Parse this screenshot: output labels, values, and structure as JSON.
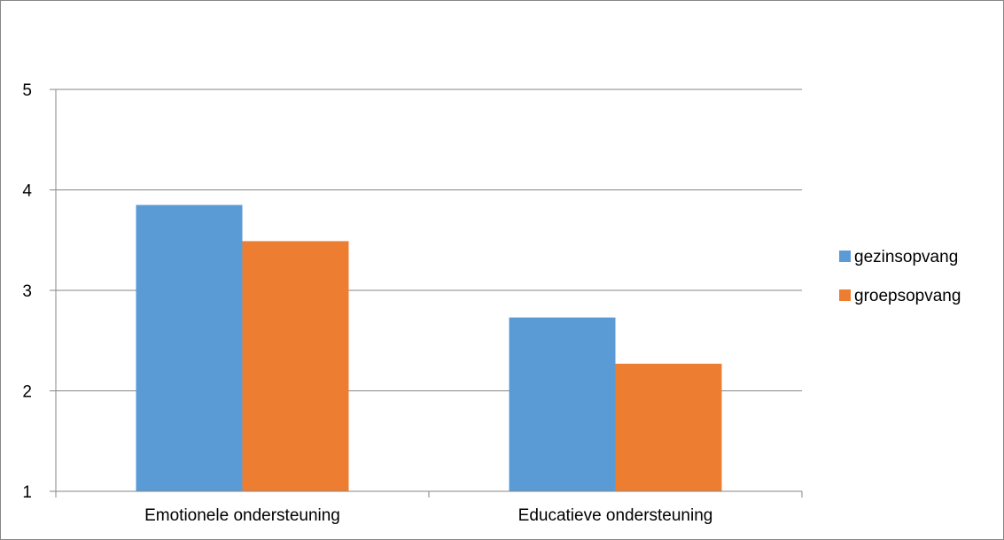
{
  "chart_data": {
    "type": "bar",
    "categories": [
      "Emotionele ondersteuning",
      "Educatieve ondersteuning"
    ],
    "series": [
      {
        "name": "gezinsopvang",
        "values": [
          3.85,
          2.73
        ],
        "color": "#5B9BD5"
      },
      {
        "name": "groepsopvang",
        "values": [
          3.49,
          2.27
        ],
        "color": "#ED7D31"
      }
    ],
    "ylim": [
      1,
      5
    ],
    "yticks": [
      1,
      2,
      3,
      4,
      5
    ],
    "grid": true,
    "legend": "right"
  }
}
